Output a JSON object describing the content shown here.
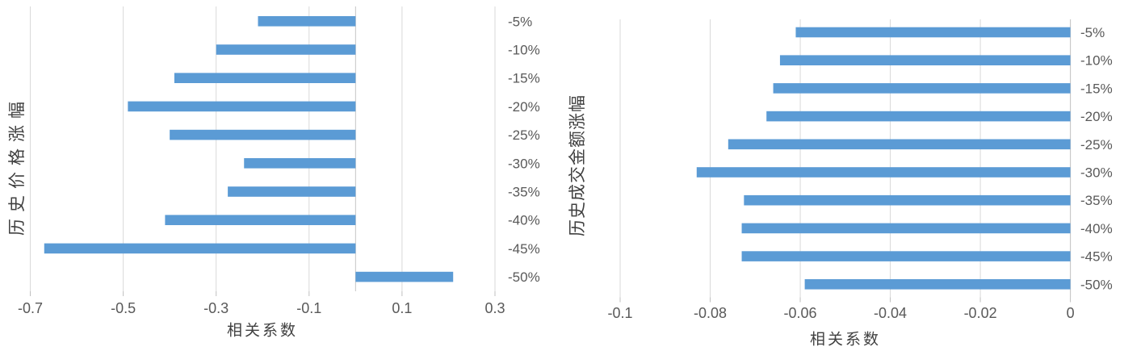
{
  "style": {
    "background": "#ffffff",
    "bar_color": "#5B9BD5",
    "grid_color": "#D9D9D9",
    "zero_line_color": "#C6C6C6",
    "tick_mark_color": "#BFBFBF",
    "tick_text_color": "#595959",
    "axis_title_color": "#404040"
  },
  "chart_data": [
    {
      "type": "bar",
      "orientation": "horizontal",
      "title": "",
      "ylabel": "历史价格涨幅",
      "xlabel": "相关系数",
      "categories": [
        "-5%",
        "-10%",
        "-15%",
        "-20%",
        "-25%",
        "-30%",
        "-35%",
        "-40%",
        "-45%",
        "-50%"
      ],
      "values": [
        -0.21,
        -0.3,
        -0.39,
        -0.49,
        -0.4,
        -0.24,
        -0.275,
        -0.41,
        -0.67,
        0.21
      ],
      "xlim": [
        -0.7,
        0.3
      ],
      "xticks": [
        -0.7,
        -0.5,
        -0.3,
        -0.1,
        0.1,
        0.3
      ],
      "xtick_labels": [
        "-0.7",
        "-0.5",
        "-0.3",
        "-0.1",
        "0.1",
        "0.3"
      ],
      "grid": true,
      "legend": "none"
    },
    {
      "type": "bar",
      "orientation": "horizontal",
      "title": "",
      "ylabel": "历史成交金额涨幅",
      "xlabel": "相关系数",
      "categories": [
        "-5%",
        "-10%",
        "-15%",
        "-20%",
        "-25%",
        "-30%",
        "-35%",
        "-40%",
        "-45%",
        "-50%"
      ],
      "values": [
        -0.061,
        -0.0645,
        -0.066,
        -0.0675,
        -0.076,
        -0.083,
        -0.0725,
        -0.073,
        -0.073,
        -0.059
      ],
      "xlim": [
        -0.1,
        0
      ],
      "xticks": [
        -0.1,
        -0.08,
        -0.06,
        -0.04,
        -0.02,
        0
      ],
      "xtick_labels": [
        "-0.1",
        "-0.08",
        "-0.06",
        "-0.04",
        "-0.02",
        "0"
      ],
      "grid": true,
      "legend": "none"
    }
  ]
}
